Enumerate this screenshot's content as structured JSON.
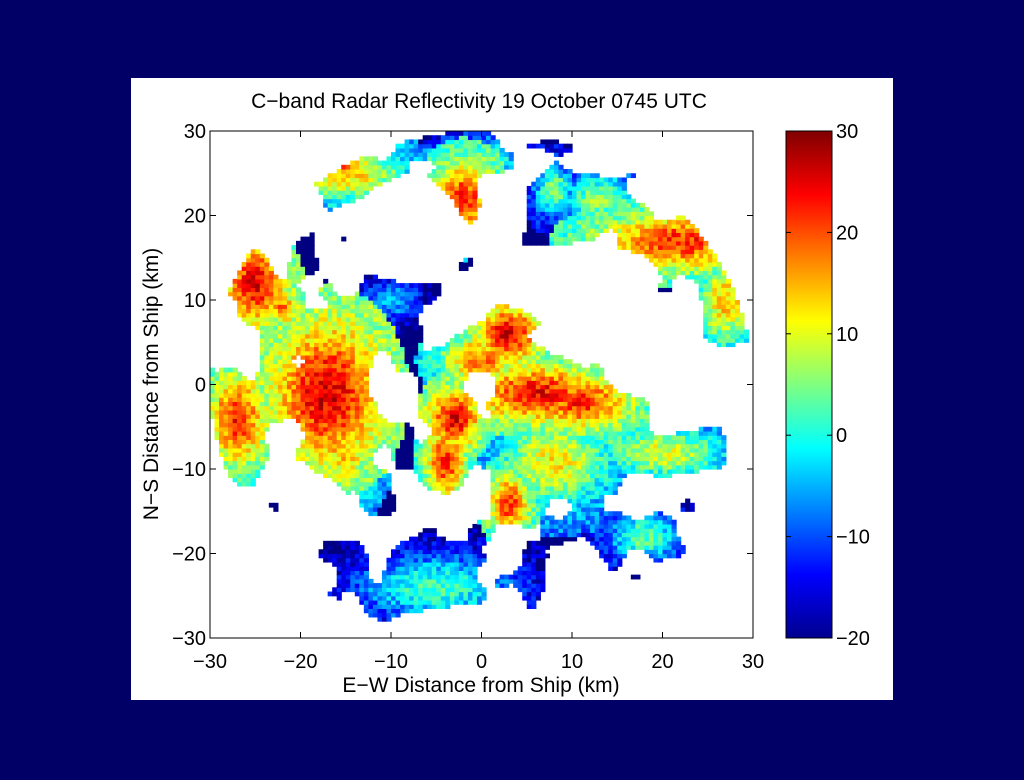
{
  "background_color": "#000066",
  "chart_data": {
    "type": "heatmap",
    "title": "C−band Radar Reflectivity 19 October 0745 UTC",
    "xlabel": "E−W Distance from Ship (km)",
    "ylabel": "N−S Distance from Ship (km)",
    "xlim": [
      -30,
      30
    ],
    "ylim": [
      -30,
      30
    ],
    "x_ticks": [
      -30,
      -20,
      -10,
      0,
      10,
      20,
      30
    ],
    "y_ticks": [
      -30,
      -20,
      -10,
      0,
      10,
      20,
      30
    ],
    "x_tick_labels": [
      "−30",
      "−20",
      "−10",
      "0",
      "10",
      "20",
      "30"
    ],
    "y_tick_labels": [
      "−30",
      "−20",
      "−10",
      "0",
      "10",
      "20",
      "30"
    ],
    "colorbar": {
      "colormap": "jet",
      "range": [
        -20,
        30
      ],
      "ticks": [
        -20,
        -10,
        0,
        10,
        20,
        30
      ],
      "tick_labels": [
        "−20",
        "−10",
        "0",
        "10",
        "20",
        "30"
      ]
    },
    "radar_range_km": 30,
    "grid_resolution_km": 0.5,
    "echo_cells": [
      {
        "x": -17,
        "y": -1,
        "rx": 5,
        "ry": 7,
        "peak": 26
      },
      {
        "x": -27,
        "y": -4,
        "rx": 3,
        "ry": 5,
        "peak": 22
      },
      {
        "x": -25,
        "y": 12,
        "rx": 3,
        "ry": 4,
        "peak": 25
      },
      {
        "x": -22,
        "y": 9,
        "rx": 2,
        "ry": 2,
        "peak": 18
      },
      {
        "x": -15,
        "y": -8,
        "rx": 3,
        "ry": 5,
        "peak": 14
      },
      {
        "x": -15,
        "y": 25,
        "rx": 6,
        "ry": 3,
        "peak": 14
      },
      {
        "x": -15,
        "y": 26,
        "rx": 1.5,
        "ry": 1.5,
        "peak": 22
      },
      {
        "x": -2,
        "y": 22,
        "rx": 3,
        "ry": 4,
        "peak": 22
      },
      {
        "x": 0,
        "y": 27,
        "rx": 4,
        "ry": 2,
        "peak": 6
      },
      {
        "x": 3,
        "y": 6,
        "rx": 3,
        "ry": 3,
        "peak": 25
      },
      {
        "x": 0,
        "y": 3,
        "rx": 4,
        "ry": 3,
        "peak": 18
      },
      {
        "x": 6,
        "y": -1,
        "rx": 6,
        "ry": 3,
        "peak": 24
      },
      {
        "x": 11,
        "y": -2,
        "rx": 5,
        "ry": 3,
        "peak": 22
      },
      {
        "x": -3,
        "y": -4,
        "rx": 2.5,
        "ry": 3,
        "peak": 25
      },
      {
        "x": -4,
        "y": -9,
        "rx": 2,
        "ry": 4,
        "peak": 22
      },
      {
        "x": 3,
        "y": -14,
        "rx": 2,
        "ry": 3,
        "peak": 22
      },
      {
        "x": 22,
        "y": 17,
        "rx": 8,
        "ry": 3,
        "peak": 22
      },
      {
        "x": 27,
        "y": 10,
        "rx": 3,
        "ry": 5,
        "peak": 14
      },
      {
        "x": 20,
        "y": -8,
        "rx": 7,
        "ry": 3,
        "peak": 10
      },
      {
        "x": 8,
        "y": -9,
        "rx": 6,
        "ry": 5,
        "peak": 12
      },
      {
        "x": 18,
        "y": -18,
        "rx": 4,
        "ry": 3,
        "peak": 4
      },
      {
        "x": -5,
        "y": -24,
        "rx": 9,
        "ry": 4,
        "peak": 2
      },
      {
        "x": -18,
        "y": 6,
        "rx": 5,
        "ry": 2,
        "peak": 4
      },
      {
        "x": -10,
        "y": 10,
        "rx": 4,
        "ry": 3,
        "peak": -4
      },
      {
        "x": 8,
        "y": 23,
        "rx": 2,
        "ry": 3,
        "peak": 6
      },
      {
        "x": 13,
        "y": 22,
        "rx": 4,
        "ry": 3,
        "peak": 6
      }
    ],
    "clear_regions": [
      {
        "x": 0,
        "y": 0,
        "rx": 2,
        "ry": 2
      },
      {
        "x": -8,
        "y": 18,
        "rx": 7,
        "ry": 7
      },
      {
        "x": 10,
        "y": 12,
        "rx": 10,
        "ry": 5
      },
      {
        "x": -23,
        "y": 22,
        "rx": 6,
        "ry": 6
      },
      {
        "x": -27,
        "y": -22,
        "rx": 6,
        "ry": 6
      },
      {
        "x": 18,
        "y": 3,
        "rx": 5,
        "ry": 5
      }
    ]
  }
}
